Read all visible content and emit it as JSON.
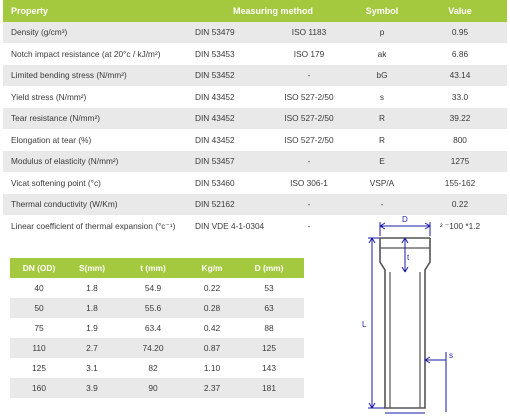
{
  "properties_table": {
    "headers": {
      "property": "Property",
      "measuring_method": "Measuring method",
      "symbol": "Symbol",
      "value": "Value"
    },
    "rows": [
      {
        "property": "Density (g/cm³)",
        "standard": "DIN 53479",
        "iso": "ISO 1183",
        "symbol": "p",
        "value": "0.95"
      },
      {
        "property": "Notch impact resistance (at 20°c / kJ/m²)",
        "standard": "DIN 53453",
        "iso": "ISO 179",
        "symbol": "ak",
        "value": "6.86"
      },
      {
        "property": "Limited bending stress (N/mm²)",
        "standard": "DIN 53452",
        "iso": "-",
        "symbol": "bG",
        "value": "43.14"
      },
      {
        "property": "Yield stress (N/mm²)",
        "standard": "DIN 43452",
        "iso": "ISO 527-2/50",
        "symbol": "s",
        "value": "33.0"
      },
      {
        "property": "Tear resistance (N/mm²)",
        "standard": "DIN 43452",
        "iso": "ISO 527-2/50",
        "symbol": "R",
        "value": "39.22"
      },
      {
        "property": "Elongation at tear (%)",
        "standard": "DIN 43452",
        "iso": "ISO 527-2/50",
        "symbol": "R",
        "value": "800"
      },
      {
        "property": "Modulus of elasticity (N/mm²)",
        "standard": "DIN 53457",
        "iso": "-",
        "symbol": "E",
        "value": "1275"
      },
      {
        "property": "Vicat softening point (°c)",
        "standard": "DIN 53460",
        "iso": "ISO 306-1",
        "symbol": "VSP/A",
        "value": "155-162"
      },
      {
        "property": "Thermal conductivity (W/Km)",
        "standard": "DIN 52162",
        "iso": "-",
        "symbol": "-",
        "value": "0.22"
      },
      {
        "property": "Linear coefficient of thermal expansion (°c⁻¹)",
        "standard": "DIN VDE 4-1-0304",
        "iso": "-",
        "symbol": "-",
        "value": "² ⁻100 *1.2"
      }
    ]
  },
  "dimensions_table": {
    "headers": [
      "DN (OD)",
      "S(mm)",
      "t (mm)",
      "Kg/m",
      "D (mm)"
    ],
    "rows": [
      [
        "40",
        "1.8",
        "54.9",
        "0.22",
        "53"
      ],
      [
        "50",
        "1.8",
        "55.6",
        "0.28",
        "63"
      ],
      [
        "75",
        "1.9",
        "63.4",
        "0.42",
        "88"
      ],
      [
        "110",
        "2.7",
        "74.20",
        "0.87",
        "125"
      ],
      [
        "125",
        "3.1",
        "82",
        "1.10",
        "143"
      ],
      [
        "160",
        "3.9",
        "90",
        "2.37",
        "181"
      ]
    ]
  },
  "pipe_drawing": {
    "labels": {
      "top": "D",
      "left": "L",
      "middle": "t",
      "right": "s"
    },
    "colors": {
      "pipe": "#555555",
      "dimension": "#1a1aa6"
    }
  },
  "colors": {
    "header_bg": "#a5c93e",
    "header_text": "#ffffff",
    "shade_row": "#e9e9e9"
  }
}
